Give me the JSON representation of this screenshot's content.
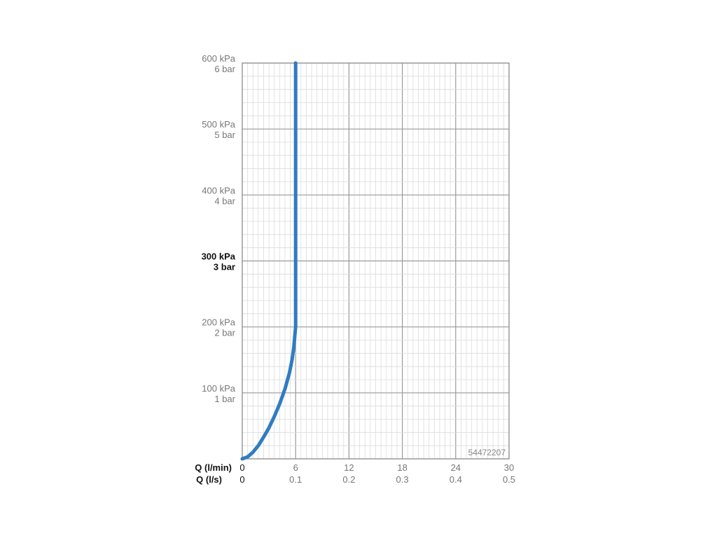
{
  "chart_data": {
    "type": "line",
    "x_primary": {
      "label": "Q (l/min)",
      "ticks": [
        0,
        6,
        12,
        18,
        24,
        30
      ],
      "range": [
        0,
        30
      ]
    },
    "x_secondary": {
      "label": "Q (l/s)",
      "ticks": [
        "0",
        "0.1",
        "0.2",
        "0.3",
        "0.4",
        "0.5"
      ]
    },
    "y": {
      "range": [
        0,
        600
      ],
      "ticks": [
        {
          "value": 100,
          "kpa": "100 kPa",
          "bar": "1 bar",
          "bold": false
        },
        {
          "value": 200,
          "kpa": "200 kPa",
          "bar": "2 bar",
          "bold": false
        },
        {
          "value": 300,
          "kpa": "300 kPa",
          "bar": "3 bar",
          "bold": true
        },
        {
          "value": 400,
          "kpa": "400 kPa",
          "bar": "4 bar",
          "bold": false
        },
        {
          "value": 500,
          "kpa": "500 kPa",
          "bar": "5 bar",
          "bold": false
        },
        {
          "value": 600,
          "kpa": "600 kPa",
          "bar": "6 bar",
          "bold": false
        }
      ]
    },
    "grid": true,
    "series": [
      {
        "color": "#2f7cc2",
        "points": [
          [
            0,
            0
          ],
          [
            0.6,
            3
          ],
          [
            1.2,
            10
          ],
          [
            1.8,
            20
          ],
          [
            2.4,
            33
          ],
          [
            3.0,
            47
          ],
          [
            3.6,
            64
          ],
          [
            4.2,
            83
          ],
          [
            4.8,
            106
          ],
          [
            5.3,
            130
          ],
          [
            5.6,
            150
          ],
          [
            5.8,
            170
          ],
          [
            5.9,
            185
          ],
          [
            6.0,
            200
          ],
          [
            6.0,
            300
          ],
          [
            6.0,
            400
          ],
          [
            6.0,
            500
          ],
          [
            6.0,
            600
          ]
        ]
      }
    ],
    "code_label": "54472207"
  }
}
